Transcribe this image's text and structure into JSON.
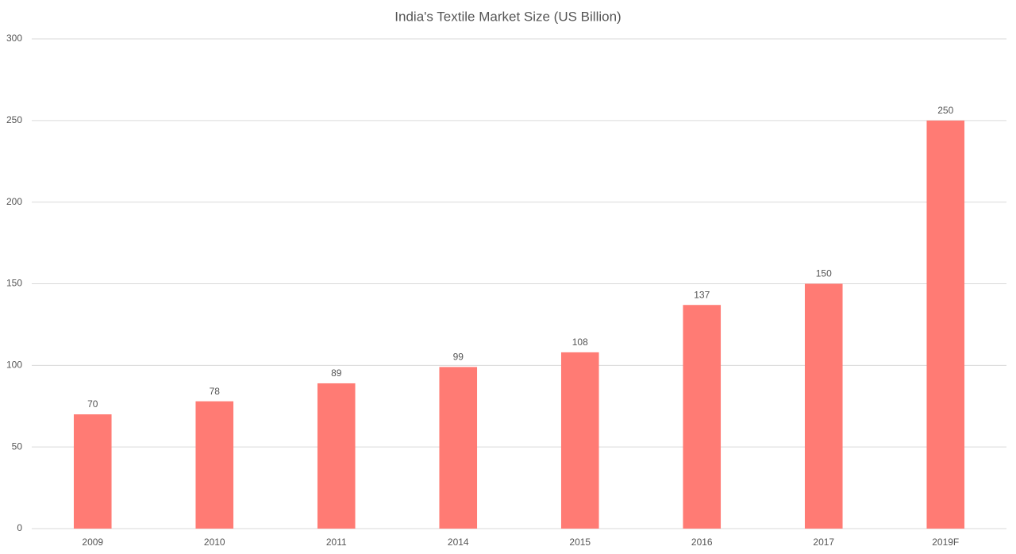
{
  "chart_data": {
    "type": "bar",
    "title": "India's Textile Market Size (US Billion)",
    "categories": [
      "2009",
      "2010",
      "2011",
      "2014",
      "2015",
      "2016",
      "2017",
      "2019F"
    ],
    "values": [
      70,
      78,
      89,
      99,
      108,
      137,
      150,
      250
    ],
    "color": "#ff7b74",
    "ylim": [
      0,
      300
    ],
    "yticks": [
      0,
      50,
      100,
      150,
      200,
      250,
      300
    ],
    "grid": true
  }
}
